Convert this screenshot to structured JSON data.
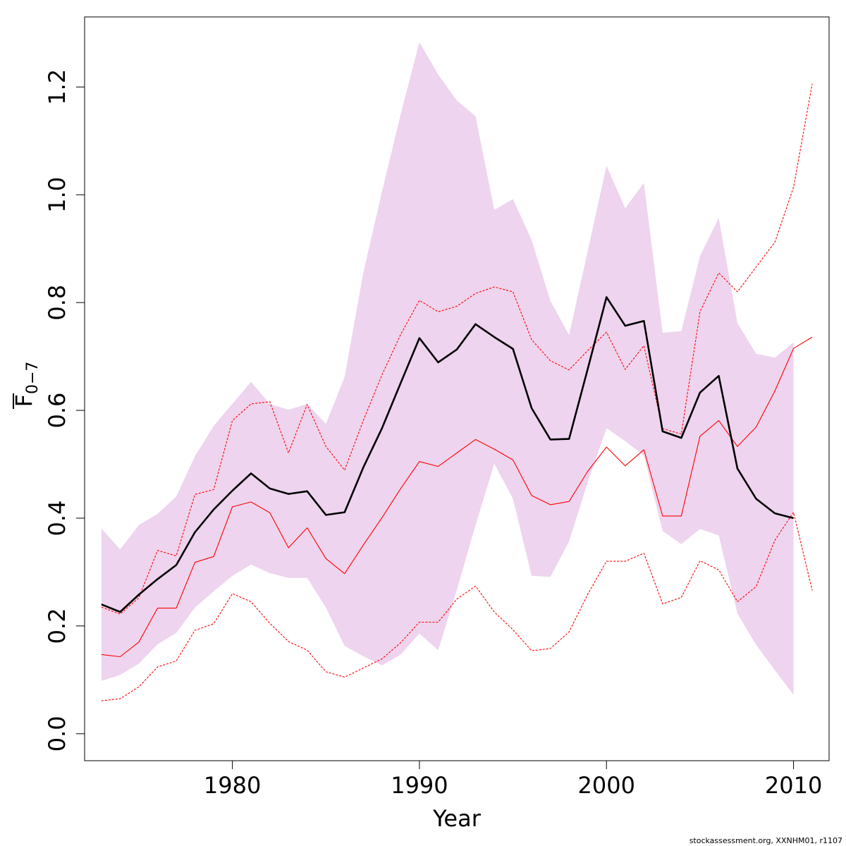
{
  "chart_data": {
    "type": "line",
    "xlabel": "Year",
    "ylabel": "F",
    "ylabel_subscript": "0−7",
    "xlim": [
      1972.1,
      2011.9
    ],
    "ylim": [
      -0.05,
      1.33
    ],
    "x_ticks": [
      1980,
      1990,
      2000,
      2010
    ],
    "x_tick_labels": [
      "1980",
      "1990",
      "2000",
      "2010"
    ],
    "y_ticks": [
      0.0,
      0.2,
      0.4,
      0.6,
      0.8,
      1.0,
      1.2
    ],
    "y_tick_labels": [
      "0.0",
      "0.2",
      "0.4",
      "0.6",
      "0.8",
      "1.0",
      "1.2"
    ],
    "grid": false,
    "band_color": "#eed4ee",
    "years": [
      1973,
      1974,
      1975,
      1976,
      1977,
      1978,
      1979,
      1980,
      1981,
      1982,
      1983,
      1984,
      1985,
      1986,
      1987,
      1988,
      1989,
      1990,
      1991,
      1992,
      1993,
      1994,
      1995,
      1996,
      1997,
      1998,
      1999,
      2000,
      2001,
      2002,
      2003,
      2004,
      2005,
      2006,
      2007,
      2008,
      2009,
      2010
    ],
    "band_upper": [
      0.381,
      0.342,
      0.387,
      0.408,
      0.44,
      0.515,
      0.571,
      0.612,
      0.653,
      0.612,
      0.601,
      0.612,
      0.575,
      0.662,
      0.855,
      1.006,
      1.15,
      1.283,
      1.223,
      1.175,
      1.146,
      0.972,
      0.992,
      0.916,
      0.803,
      0.74,
      0.896,
      1.054,
      0.975,
      1.022,
      0.744,
      0.747,
      0.886,
      0.957,
      0.762,
      0.705,
      0.698,
      0.726
    ],
    "band_lower": [
      0.098,
      0.109,
      0.13,
      0.166,
      0.187,
      0.234,
      0.264,
      0.293,
      0.314,
      0.298,
      0.289,
      0.289,
      0.234,
      0.163,
      0.144,
      0.127,
      0.147,
      0.186,
      0.155,
      0.267,
      0.387,
      0.501,
      0.436,
      0.293,
      0.291,
      0.357,
      0.467,
      0.567,
      0.543,
      0.516,
      0.376,
      0.352,
      0.38,
      0.368,
      0.223,
      0.165,
      0.118,
      0.072
    ],
    "series": [
      {
        "role": "estimate",
        "color": "#000000",
        "line_style": "solid",
        "x": [
          1973,
          1974,
          1975,
          1976,
          1977,
          1978,
          1979,
          1980,
          1981,
          1982,
          1983,
          1984,
          1985,
          1986,
          1987,
          1988,
          1989,
          1990,
          1991,
          1992,
          1993,
          1994,
          1995,
          1996,
          1997,
          1998,
          1999,
          2000,
          2001,
          2002,
          2003,
          2004,
          2005,
          2006,
          2007,
          2008,
          2009,
          2010
        ],
        "values": [
          0.24,
          0.226,
          0.258,
          0.287,
          0.313,
          0.374,
          0.416,
          0.451,
          0.483,
          0.455,
          0.445,
          0.45,
          0.406,
          0.411,
          0.494,
          0.567,
          0.651,
          0.734,
          0.689,
          0.713,
          0.76,
          0.736,
          0.714,
          0.604,
          0.546,
          0.547,
          0.677,
          0.81,
          0.757,
          0.766,
          0.561,
          0.549,
          0.633,
          0.664,
          0.492,
          0.436,
          0.409,
          0.4
        ]
      },
      {
        "role": "comparison",
        "color": "#ff0000",
        "line_style": "solid",
        "x": [
          1973,
          1974,
          1975,
          1976,
          1977,
          1978,
          1979,
          1980,
          1981,
          1982,
          1983,
          1984,
          1985,
          1986,
          1987,
          1988,
          1989,
          1990,
          1991,
          1992,
          1993,
          1994,
          1995,
          1996,
          1997,
          1998,
          1999,
          2000,
          2001,
          2002,
          2003,
          2004,
          2005,
          2006,
          2007,
          2008,
          2009,
          2010,
          2011
        ],
        "values": [
          0.147,
          0.143,
          0.17,
          0.233,
          0.233,
          0.318,
          0.329,
          0.421,
          0.43,
          0.41,
          0.345,
          0.382,
          0.325,
          0.297,
          0.35,
          0.401,
          0.455,
          0.505,
          0.496,
          0.521,
          0.546,
          0.528,
          0.508,
          0.442,
          0.425,
          0.431,
          0.487,
          0.532,
          0.497,
          0.527,
          0.404,
          0.404,
          0.552,
          0.581,
          0.533,
          0.569,
          0.636,
          0.715,
          0.736
        ]
      },
      {
        "role": "comparison-upper",
        "color": "#ff0000",
        "line_style": "dashed",
        "x": [
          1973,
          1974,
          1975,
          1976,
          1977,
          1978,
          1979,
          1980,
          1981,
          1982,
          1983,
          1984,
          1985,
          1986,
          1987,
          1988,
          1989,
          1990,
          1991,
          1992,
          1993,
          1994,
          1995,
          1996,
          1997,
          1998,
          1999,
          2000,
          2001,
          2002,
          2003,
          2004,
          2005,
          2006,
          2007,
          2008,
          2009,
          2010,
          2011
        ],
        "values": [
          0.235,
          0.222,
          0.252,
          0.34,
          0.33,
          0.444,
          0.453,
          0.581,
          0.612,
          0.616,
          0.521,
          0.611,
          0.533,
          0.489,
          0.581,
          0.666,
          0.741,
          0.804,
          0.783,
          0.793,
          0.817,
          0.829,
          0.82,
          0.731,
          0.692,
          0.675,
          0.711,
          0.745,
          0.676,
          0.72,
          0.566,
          0.556,
          0.783,
          0.855,
          0.82,
          0.866,
          0.912,
          1.014,
          1.206
        ]
      },
      {
        "role": "comparison-lower",
        "color": "#ff0000",
        "line_style": "dashed",
        "x": [
          1973,
          1974,
          1975,
          1976,
          1977,
          1978,
          1979,
          1980,
          1981,
          1982,
          1983,
          1984,
          1985,
          1986,
          1987,
          1988,
          1989,
          1990,
          1991,
          1992,
          1993,
          1994,
          1995,
          1996,
          1997,
          1998,
          1999,
          2000,
          2001,
          2002,
          2003,
          2004,
          2005,
          2006,
          2007,
          2008,
          2009,
          2010,
          2011
        ],
        "values": [
          0.061,
          0.065,
          0.087,
          0.124,
          0.135,
          0.192,
          0.204,
          0.26,
          0.245,
          0.205,
          0.171,
          0.155,
          0.115,
          0.105,
          0.122,
          0.139,
          0.169,
          0.207,
          0.207,
          0.25,
          0.274,
          0.226,
          0.193,
          0.154,
          0.158,
          0.189,
          0.259,
          0.32,
          0.32,
          0.335,
          0.241,
          0.253,
          0.321,
          0.304,
          0.245,
          0.273,
          0.359,
          0.411,
          0.266
        ]
      }
    ]
  },
  "footer": "stockassessment.org, XXNHM01, r1107"
}
